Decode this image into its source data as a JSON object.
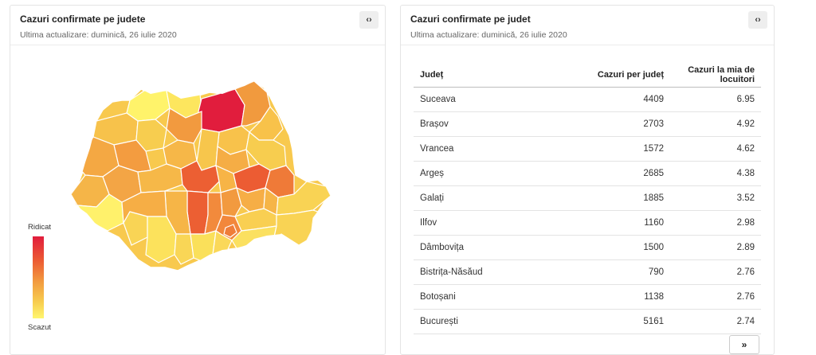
{
  "map_card": {
    "title": "Cazuri confirmate pe judete",
    "subtitle": "Ultima actualizare: duminică, 26 iulie 2020",
    "embed_label": "‹›",
    "legend_high": "Ridicat",
    "legend_low": "Scazut",
    "colors": {
      "high": "#e11d3d",
      "mid_high": "#ec5c33",
      "mid": "#f29a3f",
      "mid_low": "#f7cd4f",
      "low": "#fff66f"
    }
  },
  "table_card": {
    "title": "Cazuri confirmate pe judet",
    "subtitle": "Ultima actualizare: duminică, 26 iulie 2020",
    "embed_label": "‹›",
    "headers": [
      "Județ",
      "Cazuri per județ",
      "Cazuri la mia de locuitori"
    ],
    "rows": [
      [
        "Suceava",
        "4409",
        "6.95"
      ],
      [
        "Brașov",
        "2703",
        "4.92"
      ],
      [
        "Vrancea",
        "1572",
        "4.62"
      ],
      [
        "Argeș",
        "2685",
        "4.38"
      ],
      [
        "Galați",
        "1885",
        "3.52"
      ],
      [
        "Ilfov",
        "1160",
        "2.98"
      ],
      [
        "Dâmbovița",
        "1500",
        "2.89"
      ],
      [
        "Bistrița-Năsăud",
        "790",
        "2.76"
      ],
      [
        "Botoșani",
        "1138",
        "2.76"
      ],
      [
        "București",
        "5161",
        "2.74"
      ]
    ],
    "next_page_label": "»"
  }
}
